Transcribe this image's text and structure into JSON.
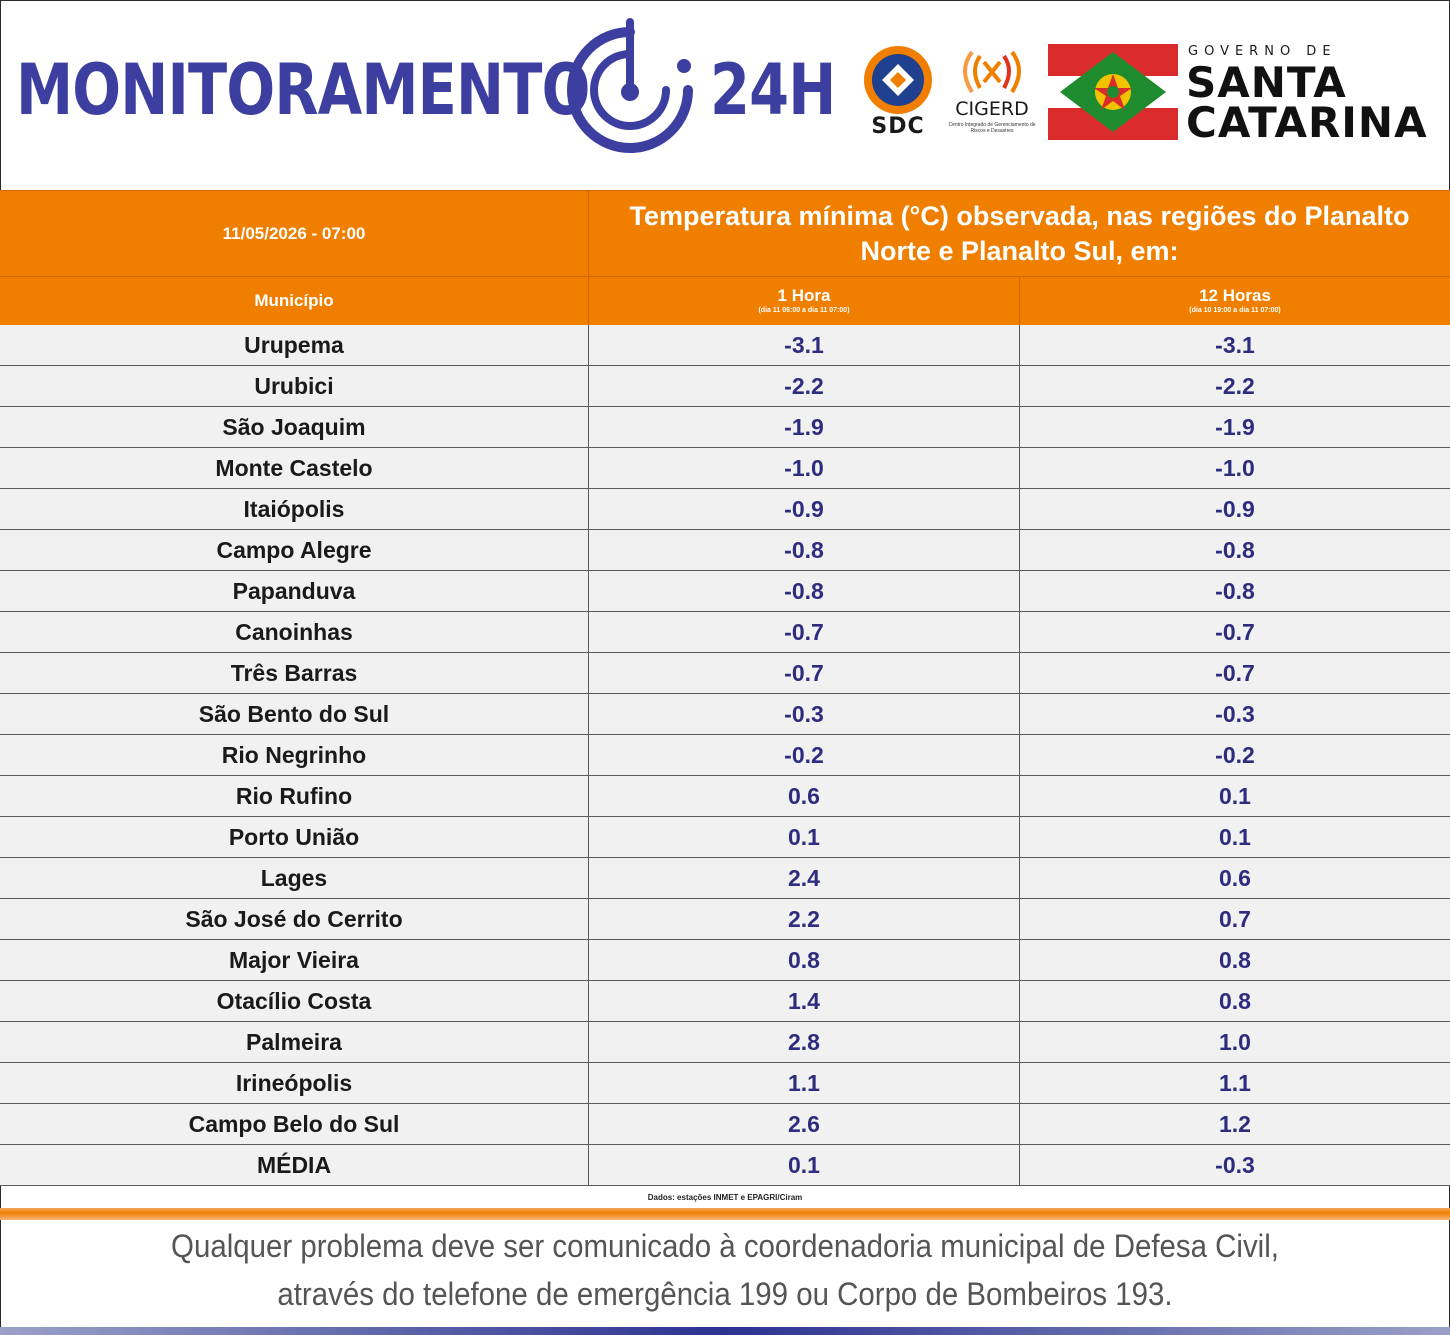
{
  "header": {
    "brand_left": "MONITORAMENTO",
    "brand_right": "24H",
    "sdc_label": "SDC",
    "cigerd_label": "CIGERD",
    "cigerd_sub": "Centro Integrado de Gerenciamento de Riscos e Desastres",
    "gov_small": "GOVERNO DE",
    "gov_line1": "SANTA",
    "gov_line2": "CATARINA",
    "colors": {
      "brand_blue": "#3d3fa0",
      "orange": "#f07f00",
      "flag_red": "#d92b2b",
      "flag_green": "#1e8c2e"
    }
  },
  "table": {
    "date": "11/05/2026 - 07:00",
    "title": "Temperatura mínima (°C) observada, nas regiões do Planalto Norte e Planalto Sul, em:",
    "col_municipio": "Município",
    "col_1h": "1 Hora",
    "col_1h_sub": "(dia 11 06:00 a dia 11 07:00)",
    "col_12h": "12 Horas",
    "col_12h_sub": "(dia 10 19:00 a dia 11 07:00)",
    "rows": [
      {
        "name": "Urupema",
        "h1": "-3.1",
        "h12": "-3.1"
      },
      {
        "name": "Urubici",
        "h1": "-2.2",
        "h12": "-2.2"
      },
      {
        "name": "São Joaquim",
        "h1": "-1.9",
        "h12": "-1.9"
      },
      {
        "name": "Monte Castelo",
        "h1": "-1.0",
        "h12": "-1.0"
      },
      {
        "name": "Itaiópolis",
        "h1": "-0.9",
        "h12": "-0.9"
      },
      {
        "name": "Campo Alegre",
        "h1": "-0.8",
        "h12": "-0.8"
      },
      {
        "name": "Papanduva",
        "h1": "-0.8",
        "h12": "-0.8"
      },
      {
        "name": "Canoinhas",
        "h1": "-0.7",
        "h12": "-0.7"
      },
      {
        "name": "Três Barras",
        "h1": "-0.7",
        "h12": "-0.7"
      },
      {
        "name": "São Bento do Sul",
        "h1": "-0.3",
        "h12": "-0.3"
      },
      {
        "name": "Rio Negrinho",
        "h1": "-0.2",
        "h12": "-0.2"
      },
      {
        "name": "Rio Rufino",
        "h1": "0.6",
        "h12": "0.1"
      },
      {
        "name": "Porto União",
        "h1": "0.1",
        "h12": "0.1"
      },
      {
        "name": "Lages",
        "h1": "2.4",
        "h12": "0.6"
      },
      {
        "name": "São José do Cerrito",
        "h1": "2.2",
        "h12": "0.7"
      },
      {
        "name": "Major Vieira",
        "h1": "0.8",
        "h12": "0.8"
      },
      {
        "name": "Otacílio Costa",
        "h1": "1.4",
        "h12": "0.8"
      },
      {
        "name": "Palmeira",
        "h1": "2.8",
        "h12": "1.0"
      },
      {
        "name": "Irineópolis",
        "h1": "1.1",
        "h12": "1.1"
      },
      {
        "name": "Campo Belo do Sul",
        "h1": "2.6",
        "h12": "1.2"
      },
      {
        "name": "MÉDIA",
        "h1": "0.1",
        "h12": "-0.3"
      }
    ],
    "source": "Dados: estações INMET e EPAGRI/Ciram"
  },
  "footer": {
    "line1": "Qualquer problema deve ser comunicado à coordenadoria municipal de Defesa Civil,",
    "line2": "através do telefone de emergência 199 ou Corpo de Bombeiros 193."
  }
}
